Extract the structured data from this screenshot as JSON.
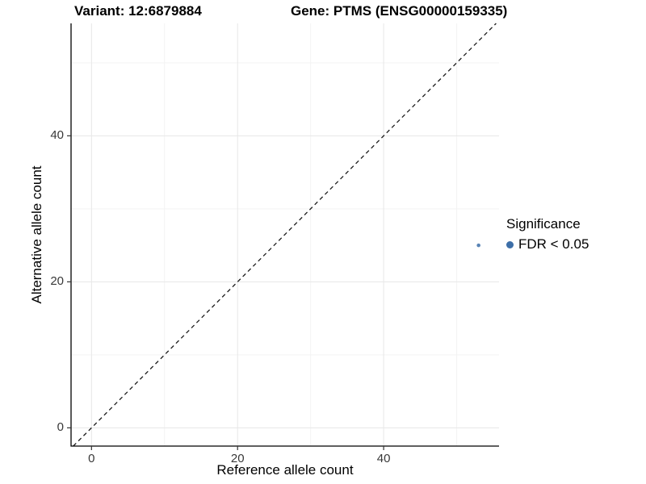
{
  "chart_data": {
    "type": "scatter",
    "title_left": "Variant: 12:6879884",
    "title_right": "Gene: PTMS (ENSG00000159335)",
    "xlabel": "Reference allele count",
    "ylabel": "Alternative allele count",
    "xlim": [
      -2.8,
      55.8
    ],
    "ylim": [
      -2.5,
      55.4
    ],
    "x_ticks": [
      0,
      20,
      40
    ],
    "y_ticks": [
      0,
      20,
      40
    ],
    "x_minor_ticks": [
      10,
      30,
      50
    ],
    "y_minor_ticks": [
      10,
      30,
      50
    ],
    "grid": true,
    "background": "#ffffff",
    "grid_major_color": "#e7e7e7",
    "grid_minor_color": "#f3f3f3",
    "axis_line_color": "#000000",
    "reference_line": {
      "type": "identity",
      "equation": "y = x",
      "style": "dashed",
      "color": "#1c1c1c"
    },
    "series": [
      {
        "name": "FDR < 0.05",
        "color": "#3d6fa8",
        "points": [
          {
            "x": 53,
            "y": 25
          }
        ],
        "point_radius": 2.3
      }
    ],
    "legend": {
      "title": "Significance",
      "position": "right",
      "entries": [
        {
          "label": "FDR < 0.05",
          "color": "#3d6fa8",
          "marker": "circle"
        }
      ]
    }
  }
}
